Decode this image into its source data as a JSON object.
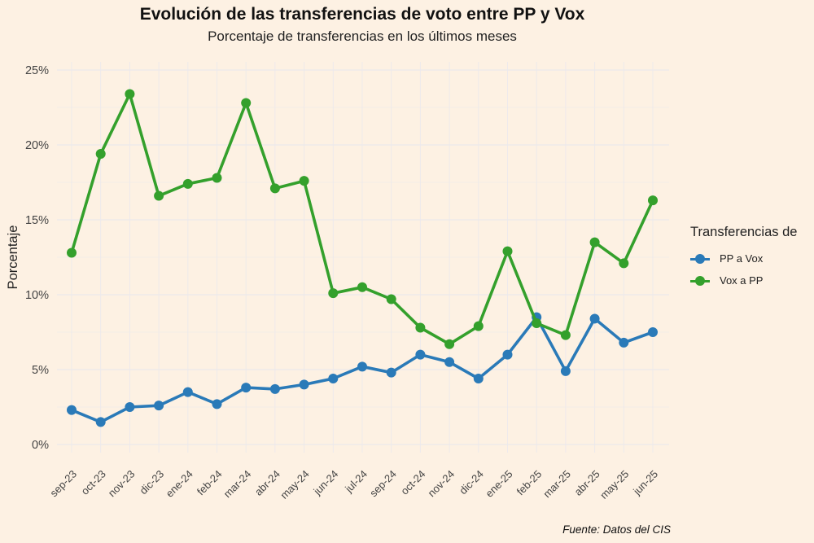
{
  "legend": {
    "title": "Transferencias de"
  },
  "caption": "Fuente: Datos del CIS",
  "colors": {
    "background": "#fdf1e3",
    "grid": "#ece9ec",
    "pp_a_vox": "#2a7ab8",
    "vox_a_pp": "#34a02c"
  },
  "chart_data": {
    "type": "line",
    "title": "Evolución de las transferencias de voto entre PP y Vox",
    "subtitle": "Porcentaje de transferencias en los últimos meses",
    "xlabel": "",
    "ylabel": "Porcentaje",
    "ylim": [
      0,
      25
    ],
    "yticks": [
      0,
      5,
      10,
      15,
      20,
      25
    ],
    "ytick_labels": [
      "0%",
      "5%",
      "10%",
      "15%",
      "20%",
      "25%"
    ],
    "grid": true,
    "legend_position": "right",
    "categories": [
      "sep-23",
      "oct-23",
      "nov-23",
      "dic-23",
      "ene-24",
      "feb-24",
      "mar-24",
      "abr-24",
      "may-24",
      "jun-24",
      "jul-24",
      "sep-24",
      "oct-24",
      "nov-24",
      "dic-24",
      "ene-25",
      "feb-25",
      "mar-25",
      "abr-25",
      "may-25",
      "jun-25"
    ],
    "series": [
      {
        "name": "PP a Vox",
        "color": "#2a7ab8",
        "values": [
          2.3,
          1.5,
          2.5,
          2.6,
          3.5,
          2.7,
          3.8,
          3.7,
          4.0,
          4.4,
          5.2,
          4.8,
          6.0,
          5.5,
          4.4,
          6.0,
          8.5,
          4.9,
          8.4,
          6.8,
          7.5
        ]
      },
      {
        "name": "Vox a PP",
        "color": "#34a02c",
        "values": [
          12.8,
          19.4,
          23.4,
          16.6,
          17.4,
          17.8,
          22.8,
          17.1,
          17.6,
          10.1,
          10.5,
          9.7,
          7.8,
          6.7,
          7.9,
          12.9,
          8.1,
          7.3,
          13.5,
          12.1,
          16.3
        ]
      }
    ]
  }
}
